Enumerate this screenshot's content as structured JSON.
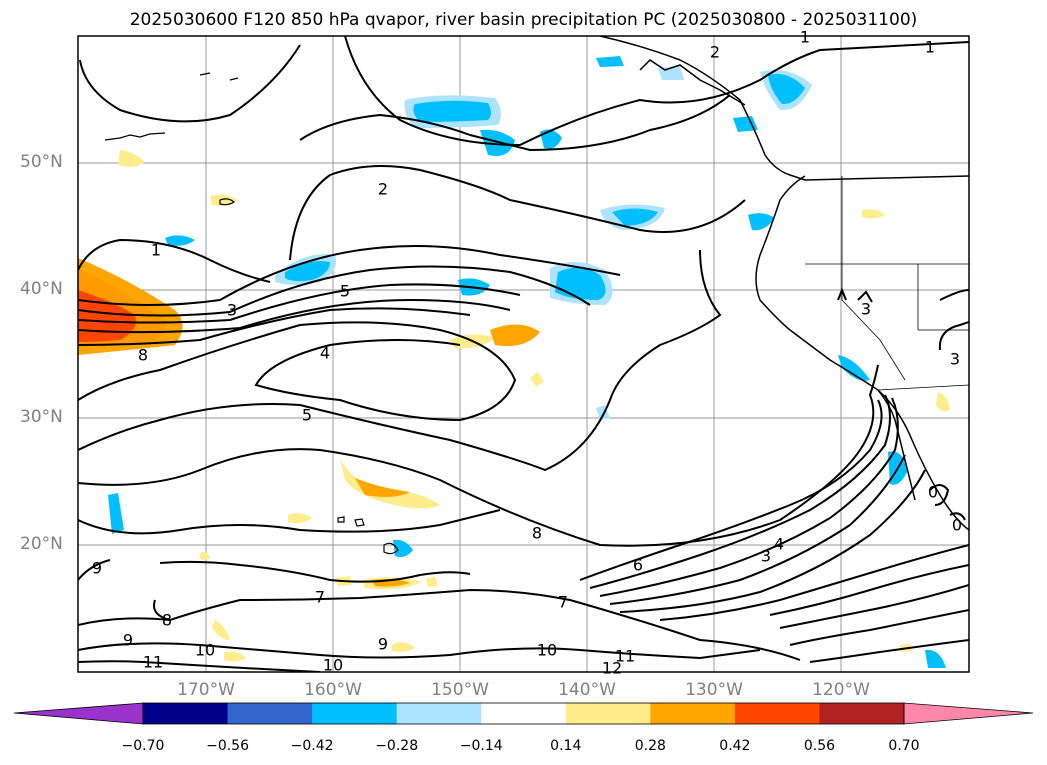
{
  "title": "2025030600 F120 850 hPa qvapor, river basin precipitation PC (2025030800 - 2025031100)",
  "lat_labels": [
    "50°N",
    "40°N",
    "30°N",
    "20°N"
  ],
  "lon_labels": [
    "170°W",
    "160°W",
    "150°W",
    "140°W",
    "130°W",
    "120°W"
  ],
  "contour_labels": [
    "1",
    "2",
    "1",
    "2",
    "3",
    "4",
    "5",
    "5",
    "8",
    "1",
    "3",
    "4",
    "6",
    "7",
    "8",
    "9",
    "10",
    "11",
    "12",
    "7",
    "8",
    "9",
    "10",
    "11",
    "3",
    "3",
    "0",
    "0",
    "9",
    "10"
  ],
  "colorbar": {
    "extend": "both",
    "colors": [
      "#9933cc",
      "#00008b",
      "#3366cc",
      "#00bfff",
      "#aee3ff",
      "#ffffff",
      "#ffec8b",
      "#ffa500",
      "#ff4500",
      "#b22222",
      "#ff88aa"
    ],
    "tick_labels": [
      "−0.70",
      "−0.56",
      "−0.42",
      "−0.28",
      "−0.14",
      "0.14",
      "0.28",
      "0.42",
      "0.56",
      "0.70"
    ]
  },
  "colors": {
    "frame": "#000000",
    "grid": "#999999",
    "label_gray": "#808080"
  }
}
